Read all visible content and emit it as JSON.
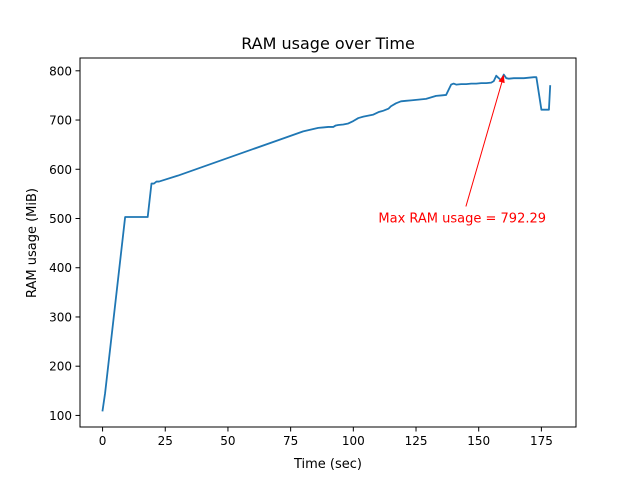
{
  "chart_data": {
    "type": "line",
    "title": "RAM usage over Time",
    "xlabel": "Time (sec)",
    "ylabel": "RAM usage (MiB)",
    "xlim": [
      -9,
      188.8
    ],
    "ylim": [
      76.5,
      826
    ],
    "xticks": [
      0,
      25,
      50,
      75,
      100,
      125,
      150,
      175
    ],
    "yticks": [
      100,
      200,
      300,
      400,
      500,
      600,
      700,
      800
    ],
    "grid": false,
    "line_color": "#1f77b4",
    "series": [
      {
        "x": [
          0,
          1,
          9,
          9.5,
          18,
          19.5,
          20.5,
          21.5,
          22.5,
          30,
          40,
          50,
          60,
          70,
          80,
          86,
          88,
          90,
          92,
          93,
          94,
          96,
          97,
          98,
          100,
          102,
          104,
          106,
          108,
          110,
          112,
          114,
          115,
          117,
          119,
          121,
          123,
          125,
          127,
          129,
          131,
          133,
          135,
          137,
          139,
          140,
          141,
          143,
          145,
          147,
          149,
          151,
          153,
          155,
          156,
          157,
          158,
          159,
          160,
          161,
          162,
          164,
          166,
          168,
          170,
          172,
          173,
          175,
          176,
          177,
          178,
          178.5
        ],
        "y": [
          110,
          145,
          503,
          503,
          503,
          571,
          571,
          575,
          575,
          587,
          605,
          623,
          641,
          659,
          677,
          684,
          685,
          686,
          686,
          689,
          690,
          691,
          692,
          693,
          698,
          704,
          707,
          709,
          711,
          716,
          719,
          723,
          728,
          734,
          738,
          739,
          740,
          741,
          742,
          743,
          746,
          749,
          750,
          751,
          772,
          774,
          772,
          773,
          773,
          774,
          774,
          775,
          775,
          776,
          779,
          790,
          785,
          781,
          792.29,
          785,
          784,
          785,
          785,
          785,
          786,
          787,
          787,
          721,
          721,
          721,
          721,
          769
        ]
      }
    ],
    "annotation": {
      "text": "Max RAM usage = 792.29",
      "color": "#ff0000",
      "xy": [
        160,
        792.29
      ],
      "xytext": [
        110,
        500
      ]
    }
  }
}
